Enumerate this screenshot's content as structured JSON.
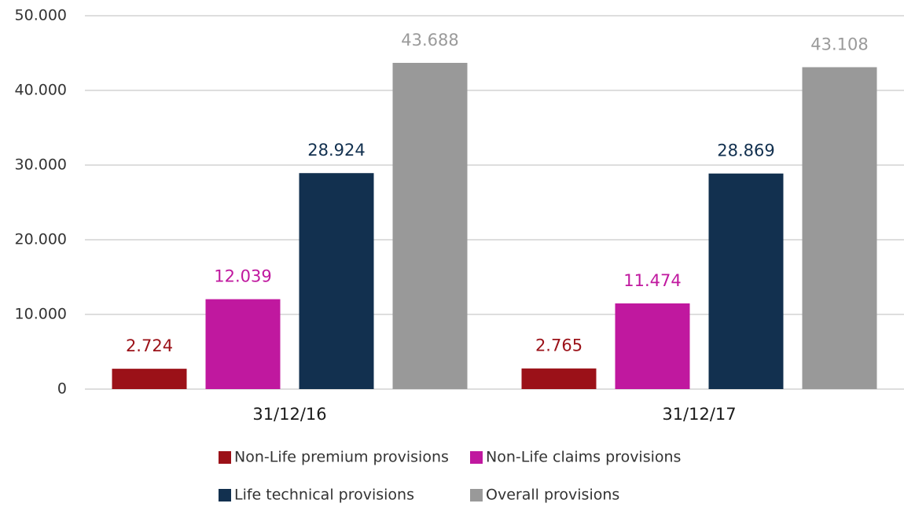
{
  "chart_data": {
    "type": "bar",
    "categories": [
      "31/12/16",
      "31/12/17"
    ],
    "series": [
      {
        "name": "Non-Life premium provisions",
        "color": "#9b1118",
        "values": [
          2724,
          2765
        ],
        "value_labels": [
          "2.724",
          "2.765"
        ]
      },
      {
        "name": "Non-Life claims provisions",
        "color": "#c0189f",
        "values": [
          12039,
          11474
        ],
        "value_labels": [
          "12.039",
          "11.474"
        ]
      },
      {
        "name": "Life technical provisions",
        "color": "#12304f",
        "values": [
          28924,
          28869
        ],
        "value_labels": [
          "28.924",
          "28.869"
        ]
      },
      {
        "name": "Overall provisions",
        "color": "#999999",
        "values": [
          43688,
          43108
        ],
        "value_labels": [
          "43.688",
          "43.108"
        ]
      }
    ],
    "ylim": [
      0,
      50000
    ],
    "yticks": [
      0,
      {
        "value": 10000,
        "label": "10.000"
      },
      {
        "value": 20000,
        "label": "20.000"
      },
      {
        "value": 30000,
        "label": "30.000"
      },
      {
        "value": 40000,
        "label": "40.000"
      },
      {
        "value": 50000,
        "label": "50.000"
      }
    ],
    "grid": true
  }
}
